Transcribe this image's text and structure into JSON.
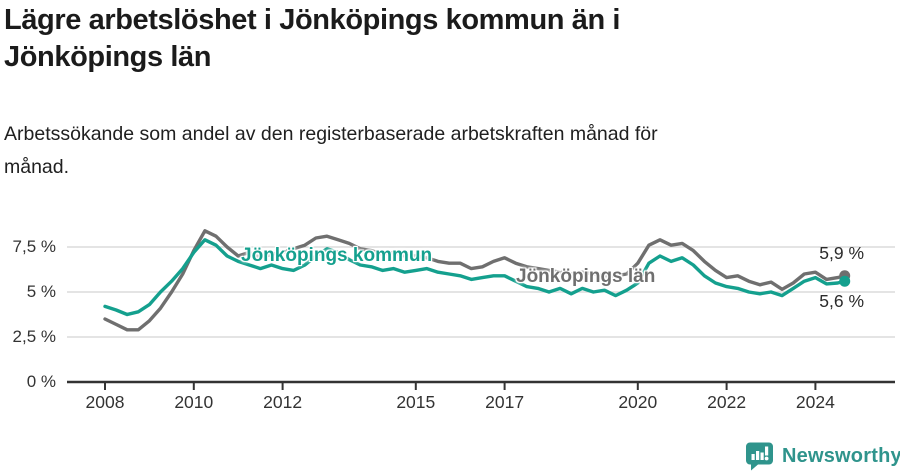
{
  "header": {
    "title_line1": "Lägre arbetslöshet i Jönköpings kommun än i",
    "title_line2": "Jönköpings län",
    "subtitle_line1": "Arbetssökande som andel av den registerbaserade arbetskraften månad för",
    "subtitle_line2": "månad."
  },
  "chart_data": {
    "type": "line",
    "title": "Lägre arbetslöshet i Jönköpings kommun än i Jönköpings län",
    "subtitle": "Arbetssökande som andel av den registerbaserade arbetskraften månad för månad.",
    "unit": "%",
    "grid": "horizontal-only",
    "legend_position": "inline-labels-on-lines",
    "x_range": [
      2007.15,
      2025.75
    ],
    "ylim": [
      0,
      8.6
    ],
    "x_ticks": [
      {
        "label": "2008",
        "value": 2008
      },
      {
        "label": "2010",
        "value": 2010
      },
      {
        "label": "2012",
        "value": 2012
      },
      {
        "label": "2015",
        "value": 2015
      },
      {
        "label": "2017",
        "value": 2017
      },
      {
        "label": "2020",
        "value": 2020
      },
      {
        "label": "2022",
        "value": 2022
      },
      {
        "label": "2024",
        "value": 2024
      }
    ],
    "y_ticks": [
      {
        "label": "0 %",
        "value": 0
      },
      {
        "label": "2,5 %",
        "value": 2.5
      },
      {
        "label": "5 %",
        "value": 5
      },
      {
        "label": "7,5 %",
        "value": 7.5
      }
    ],
    "x": [
      2008.0,
      2008.25,
      2008.5,
      2008.75,
      2009.0,
      2009.25,
      2009.5,
      2009.75,
      2010.0,
      2010.25,
      2010.5,
      2010.75,
      2011.0,
      2011.25,
      2011.5,
      2011.75,
      2012.0,
      2012.25,
      2012.5,
      2012.75,
      2013.0,
      2013.25,
      2013.5,
      2013.75,
      2014.0,
      2014.25,
      2014.5,
      2014.75,
      2015.0,
      2015.25,
      2015.5,
      2015.75,
      2016.0,
      2016.25,
      2016.5,
      2016.75,
      2017.0,
      2017.25,
      2017.5,
      2017.75,
      2018.0,
      2018.25,
      2018.5,
      2018.75,
      2019.0,
      2019.25,
      2019.5,
      2019.75,
      2020.0,
      2020.25,
      2020.5,
      2020.75,
      2021.0,
      2021.25,
      2021.5,
      2021.75,
      2022.0,
      2022.25,
      2022.5,
      2022.75,
      2023.0,
      2023.25,
      2023.5,
      2023.75,
      2024.0,
      2024.25,
      2024.5,
      2024.66
    ],
    "series": [
      {
        "name": "Jönköpings län",
        "color": "#6f6f6f",
        "end_label": "5,9 %",
        "end_value": 5.9,
        "values": [
          3.5,
          3.2,
          2.9,
          2.9,
          3.4,
          4.1,
          5.0,
          6.0,
          7.3,
          8.4,
          8.1,
          7.5,
          7.0,
          7.2,
          6.9,
          7.1,
          7.2,
          7.4,
          7.6,
          8.0,
          8.1,
          7.9,
          7.7,
          7.4,
          7.3,
          7.1,
          7.2,
          7.0,
          7.0,
          6.9,
          6.7,
          6.6,
          6.6,
          6.3,
          6.4,
          6.7,
          6.9,
          6.6,
          6.4,
          6.3,
          6.2,
          6.1,
          6.0,
          6.1,
          6.0,
          5.9,
          5.9,
          6.0,
          6.6,
          7.6,
          7.9,
          7.6,
          7.7,
          7.3,
          6.7,
          6.2,
          5.8,
          5.9,
          5.6,
          5.4,
          5.55,
          5.15,
          5.5,
          6.0,
          6.1,
          5.7,
          5.8,
          5.9
        ]
      },
      {
        "name": "Jönköpings kommun",
        "color": "#14a08e",
        "end_label": "5,6 %",
        "end_value": 5.6,
        "values": [
          4.2,
          4.0,
          3.75,
          3.9,
          4.3,
          5.0,
          5.6,
          6.3,
          7.2,
          7.9,
          7.6,
          7.0,
          6.7,
          6.5,
          6.3,
          6.5,
          6.3,
          6.2,
          6.5,
          7.0,
          7.4,
          7.2,
          6.8,
          6.5,
          6.4,
          6.2,
          6.3,
          6.1,
          6.2,
          6.3,
          6.1,
          6.0,
          5.9,
          5.7,
          5.8,
          5.9,
          5.9,
          5.6,
          5.3,
          5.2,
          5.0,
          5.2,
          4.9,
          5.2,
          5.0,
          5.1,
          4.8,
          5.1,
          5.5,
          6.6,
          7.0,
          6.7,
          6.9,
          6.5,
          5.9,
          5.5,
          5.3,
          5.2,
          5.0,
          4.9,
          5.0,
          4.8,
          5.2,
          5.6,
          5.8,
          5.45,
          5.5,
          5.6
        ]
      }
    ],
    "colors": {
      "axis": "#333333",
      "gridline": "#dcdcdc",
      "kommun_teal": "#14a08e",
      "lan_gray": "#6f6f6f"
    }
  },
  "footer": {
    "brand": "Newsworthy",
    "brand_color": "#2f948c"
  }
}
